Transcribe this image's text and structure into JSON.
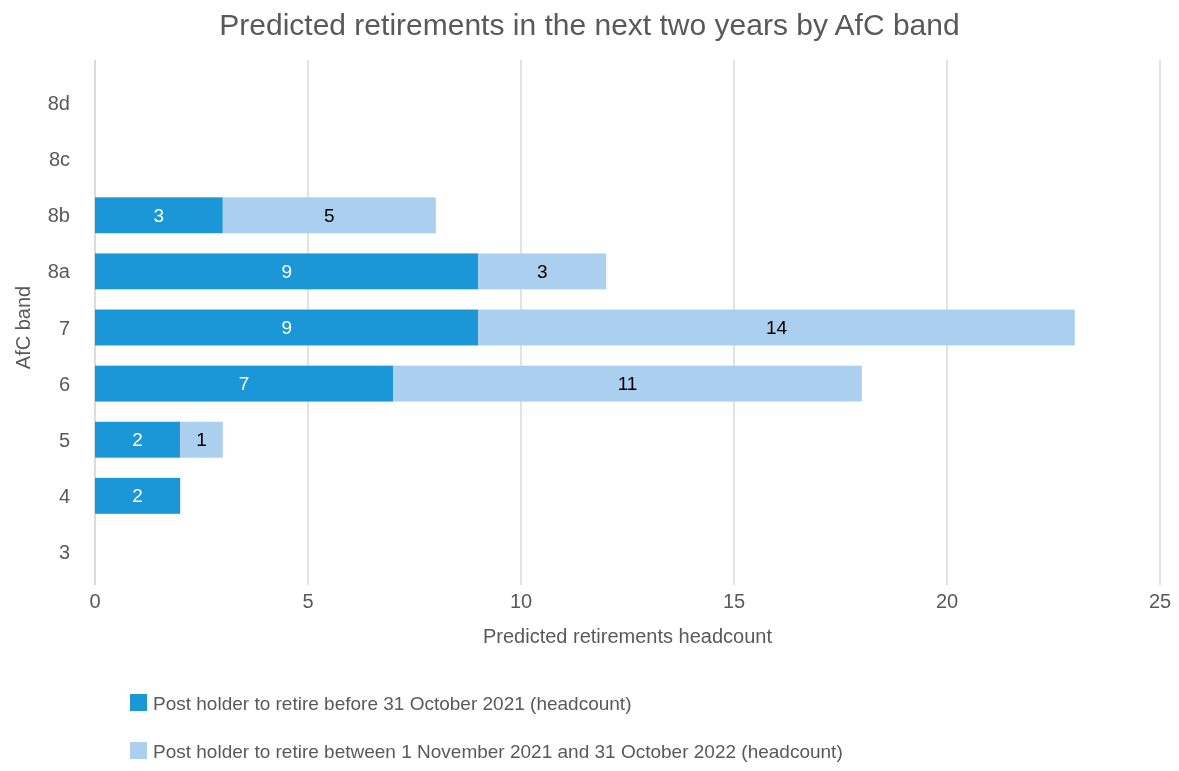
{
  "chart_data": {
    "type": "bar",
    "orientation": "horizontal",
    "stacked": true,
    "title": "Predicted retirements in the next two years by AfC band",
    "xlabel": "Predicted retirements headcount",
    "ylabel": "AfC band",
    "categories": [
      "8d",
      "8c",
      "8b",
      "8a",
      "7",
      "6",
      "5",
      "4",
      "3"
    ],
    "series": [
      {
        "name": "Post holder to retire before 31 October 2021 (headcount)",
        "color": "#1b96d6",
        "values": [
          0,
          0,
          3,
          9,
          9,
          7,
          2,
          2,
          0
        ],
        "value_labels": [
          null,
          null,
          "3",
          "9",
          "9",
          "7",
          "2",
          "2",
          null
        ]
      },
      {
        "name": "Post holder to retire between 1 November 2021 and 31 October 2022 (headcount)",
        "color": "#abcfee",
        "values": [
          0,
          0,
          5,
          3,
          14,
          11,
          1,
          0,
          0
        ],
        "value_labels": [
          null,
          null,
          "5",
          "3",
          "14",
          "11",
          "1",
          null,
          null
        ]
      }
    ],
    "xlim": [
      0,
      25
    ],
    "xticks": [
      0,
      5,
      10,
      15,
      20,
      25
    ],
    "grid": "x",
    "legend": "bottom"
  }
}
